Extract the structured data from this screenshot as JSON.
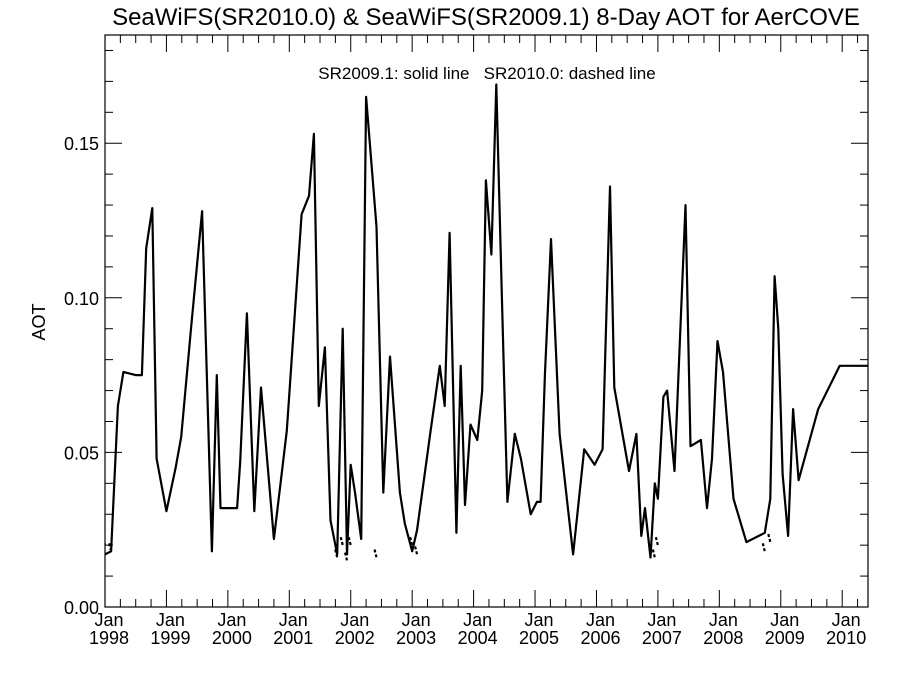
{
  "chart_data": {
    "type": "line",
    "title": "SeaWiFS(SR2010.0) & SeaWiFS(SR2009.1) 8-Day AOT for AerCOVE",
    "annotation": "SR2009.1: solid line   SR2010.0: dashed line",
    "xlabel": "",
    "ylabel": "AOT",
    "xlim": [
      1998.0,
      2010.42
    ],
    "ylim": [
      0.0,
      0.185
    ],
    "grid": false,
    "legend": "none",
    "y_ticks": [
      {
        "value": 0.0,
        "label": "0.00"
      },
      {
        "value": 0.05,
        "label": "0.05"
      },
      {
        "value": 0.1,
        "label": "0.10"
      },
      {
        "value": 0.15,
        "label": "0.15"
      }
    ],
    "x_ticks": [
      {
        "value": 1998,
        "month": "Jan",
        "year": "1998"
      },
      {
        "value": 1999,
        "month": "Jan",
        "year": "1999"
      },
      {
        "value": 2000,
        "month": "Jan",
        "year": "2000"
      },
      {
        "value": 2001,
        "month": "Jan",
        "year": "2001"
      },
      {
        "value": 2002,
        "month": "Jan",
        "year": "2002"
      },
      {
        "value": 2003,
        "month": "Jan",
        "year": "2003"
      },
      {
        "value": 2004,
        "month": "Jan",
        "year": "2004"
      },
      {
        "value": 2005,
        "month": "Jan",
        "year": "2005"
      },
      {
        "value": 2006,
        "month": "Jan",
        "year": "2006"
      },
      {
        "value": 2007,
        "month": "Jan",
        "year": "2007"
      },
      {
        "value": 2008,
        "month": "Jan",
        "year": "2008"
      },
      {
        "value": 2009,
        "month": "Jan",
        "year": "2009"
      },
      {
        "value": 2010,
        "month": "Jan",
        "year": "2010"
      }
    ],
    "series": [
      {
        "name": "SR2009.1",
        "style": "solid",
        "color": "#000000",
        "x": [
          1998.0,
          1998.1,
          1998.21,
          1998.3,
          1998.5,
          1998.6,
          1998.67,
          1998.77,
          1998.84,
          1999.0,
          1999.15,
          1999.24,
          1999.4,
          1999.58,
          1999.74,
          1999.82,
          1999.88,
          1999.95,
          2000.0,
          2000.1,
          2000.15,
          2000.2,
          2000.31,
          2000.43,
          2000.54,
          2000.75,
          2000.96,
          2001.2,
          2001.32,
          2001.4,
          2001.48,
          2001.58,
          2001.67,
          2001.78,
          2001.87,
          2001.94,
          2002.0,
          2002.07,
          2002.17,
          2002.25,
          2002.42,
          2002.53,
          2002.64,
          2002.8,
          2002.88,
          2003.0,
          2003.08,
          2003.3,
          2003.45,
          2003.53,
          2003.61,
          2003.72,
          2003.79,
          2003.86,
          2003.95,
          2004.06,
          2004.14,
          2004.2,
          2004.29,
          2004.37,
          2004.46,
          2004.55,
          2004.67,
          2004.77,
          2004.93,
          2005.03,
          2005.09,
          2005.16,
          2005.26,
          2005.4,
          2005.62,
          2005.8,
          2005.97,
          2006.1,
          2006.22,
          2006.29,
          2006.53,
          2006.65,
          2006.73,
          2006.79,
          2006.88,
          2006.95,
          2007.0,
          2007.09,
          2007.15,
          2007.27,
          2007.45,
          2007.53,
          2007.7,
          2007.8,
          2007.88,
          2007.97,
          2008.06,
          2008.23,
          2008.44,
          2008.74,
          2008.83,
          2008.9,
          2008.96,
          2009.03,
          2009.12,
          2009.2,
          2009.29,
          2009.61,
          2009.96,
          2010.06,
          2010.15,
          2010.29,
          2010.42
        ],
        "values": [
          0.017,
          0.018,
          0.065,
          0.076,
          0.075,
          0.075,
          0.116,
          0.129,
          0.048,
          0.031,
          0.045,
          0.055,
          0.09,
          0.128,
          0.018,
          0.075,
          0.032,
          0.032,
          0.032,
          0.032,
          0.032,
          0.047,
          0.095,
          0.031,
          0.071,
          0.022,
          0.057,
          0.127,
          0.133,
          0.153,
          0.065,
          0.084,
          0.028,
          0.017,
          0.09,
          0.017,
          0.046,
          0.037,
          0.022,
          0.165,
          0.123,
          0.037,
          0.081,
          0.037,
          0.027,
          0.018,
          0.025,
          0.057,
          0.078,
          0.065,
          0.121,
          0.024,
          0.078,
          0.033,
          0.059,
          0.054,
          0.07,
          0.138,
          0.114,
          0.169,
          0.1,
          0.034,
          0.056,
          0.048,
          0.03,
          0.034,
          0.034,
          0.075,
          0.119,
          0.056,
          0.017,
          0.051,
          0.046,
          0.051,
          0.136,
          0.071,
          0.044,
          0.056,
          0.023,
          0.032,
          0.016,
          0.04,
          0.035,
          0.068,
          0.07,
          0.044,
          0.13,
          0.052,
          0.054,
          0.032,
          0.048,
          0.086,
          0.076,
          0.035,
          0.021,
          0.024,
          0.035,
          0.107,
          0.09,
          0.043,
          0.023,
          0.064,
          0.041,
          0.064,
          0.078,
          0.078,
          0.078,
          0.078,
          0.078
        ]
      },
      {
        "name": "SR2010.0",
        "style": "dashed",
        "color": "#000000",
        "x": [
          1998.0,
          1998.1,
          2001.78,
          2001.87,
          2001.94,
          2002.0,
          2002.42,
          2003.0,
          2003.08,
          2006.95,
          2007.0,
          2008.74,
          2008.83
        ],
        "values": [
          0.02,
          0.018,
          0.016,
          0.02,
          0.015,
          0.02,
          0.016,
          0.02,
          0.017,
          0.016,
          0.02,
          0.018,
          0.021
        ]
      }
    ]
  }
}
